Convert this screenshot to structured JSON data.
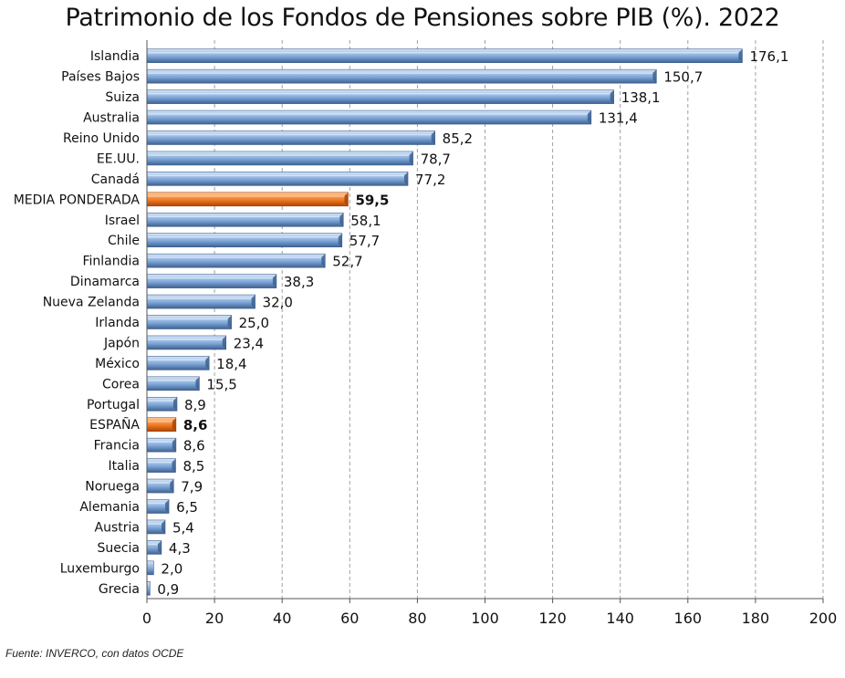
{
  "title": "Patrimonio de los Fondos de Pensiones sobre PIB (%). 2022",
  "source": "Fuente: INVERCO, con datos OCDE",
  "colors": {
    "bar_main": "#7ea6d8",
    "bar_dark": "#3e6190",
    "bar_light": "#d6e6f8",
    "highlight_main": "#f07a22",
    "highlight_dark": "#a84508",
    "highlight_light": "#ffc99a",
    "grid": "#a0a0a0"
  },
  "chart_data": {
    "type": "bar",
    "orientation": "horizontal",
    "categories": [
      "Islandia",
      "Países Bajos",
      "Suiza",
      "Australia",
      "Reino Unido",
      "EE.UU.",
      "Canadá",
      "MEDIA PONDERADA",
      "Israel",
      "Chile",
      "Finlandia",
      "Dinamarca",
      "Nueva Zelanda",
      "Irlanda",
      "Japón",
      "México",
      "Corea",
      "Portugal",
      "ESPAÑA",
      "Francia",
      "Italia",
      "Noruega",
      "Alemania",
      "Austria",
      "Suecia",
      "Luxemburgo",
      "Grecia"
    ],
    "values": [
      176.1,
      150.7,
      138.1,
      131.4,
      85.2,
      78.7,
      77.2,
      59.5,
      58.1,
      57.7,
      52.7,
      38.3,
      32.0,
      25.0,
      23.4,
      18.4,
      15.5,
      8.9,
      8.6,
      8.6,
      8.5,
      7.9,
      6.5,
      5.4,
      4.3,
      2.0,
      0.9
    ],
    "value_labels": [
      "176,1",
      "150,7",
      "138,1",
      "131,4",
      "85,2",
      "78,7",
      "77,2",
      "59,5",
      "58,1",
      "57,7",
      "52,7",
      "38,3",
      "32,0",
      "25,0",
      "23,4",
      "18,4",
      "15,5",
      "8,9",
      "8,6",
      "8,6",
      "8,5",
      "7,9",
      "6,5",
      "5,4",
      "4,3",
      "2,0",
      "0,9"
    ],
    "highlighted": [
      "MEDIA PONDERADA",
      "ESPAÑA"
    ],
    "xlim": [
      0,
      200
    ],
    "xticks": [
      0,
      20,
      40,
      60,
      80,
      100,
      120,
      140,
      160,
      180,
      200
    ],
    "xtick_labels": [
      "0",
      "20",
      "40",
      "60",
      "80",
      "100",
      "120",
      "140",
      "160",
      "180",
      "200"
    ],
    "grid": "vertical dashed",
    "legend": "none"
  }
}
